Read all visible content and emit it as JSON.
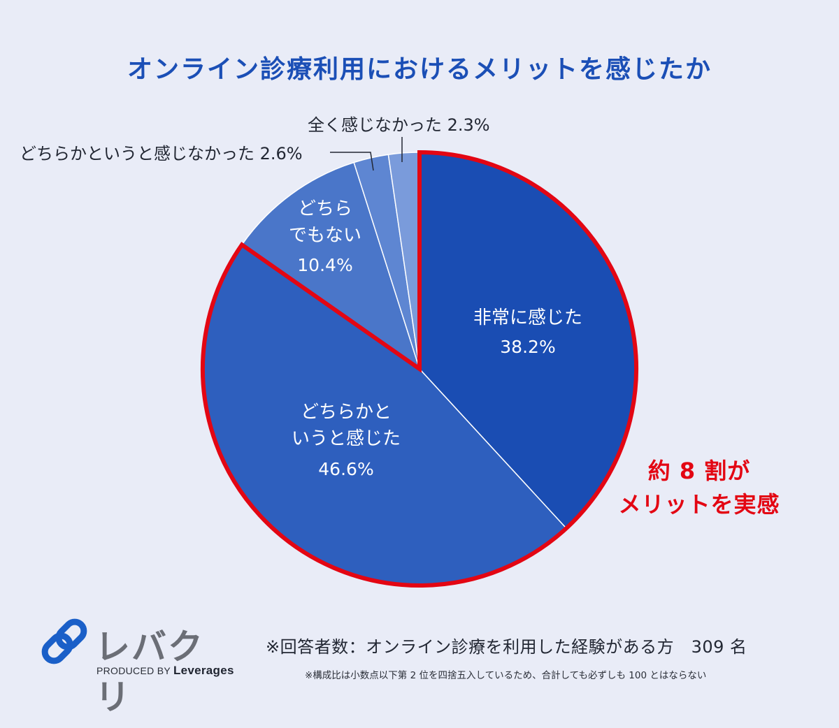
{
  "title": "オンライン診療利用におけるメリットを感じたか",
  "chart_data": {
    "type": "pie",
    "title": "オンライン診療利用におけるメリットを感じたか",
    "slices": [
      {
        "name": "非常に感じた",
        "label_lines": [
          "非常に感じた"
        ],
        "value": 38.2,
        "value_label": "38.2%",
        "color": "#1a4db3"
      },
      {
        "name": "どちらかというと感じた",
        "label_lines": [
          "どちらかと",
          "いうと感じた"
        ],
        "value": 46.6,
        "value_label": "46.6%",
        "color": "#2e5fbe"
      },
      {
        "name": "どちらでもない",
        "label_lines": [
          "どちら",
          "でもない"
        ],
        "value": 10.4,
        "value_label": "10.4%",
        "color": "#4a76c9"
      },
      {
        "name": "どちらかというと感じなかった",
        "label_lines": [
          "どちらかというと感じなかった"
        ],
        "value": 2.6,
        "value_label": "2.6%",
        "color": "#5e86d2"
      },
      {
        "name": "全く感じなかった",
        "label_lines": [
          "全く感じなかった"
        ],
        "value": 2.3,
        "value_label": "2.3%",
        "color": "#7a9bdb"
      }
    ],
    "highlight_color": "#e30613"
  },
  "highlight": {
    "line1": "約 8 割が",
    "line2": "メリットを実感"
  },
  "logo": {
    "name": "レバクリ",
    "produced_by": "PRODUCED BY",
    "brand": "Leverages"
  },
  "note": "※回答者数：オンライン診療を利用した経験がある方　309 名",
  "footnote": "※構成比は小数点以下第 2 位を四捨五入しているため、合計しても必ずしも 100 とはならない"
}
